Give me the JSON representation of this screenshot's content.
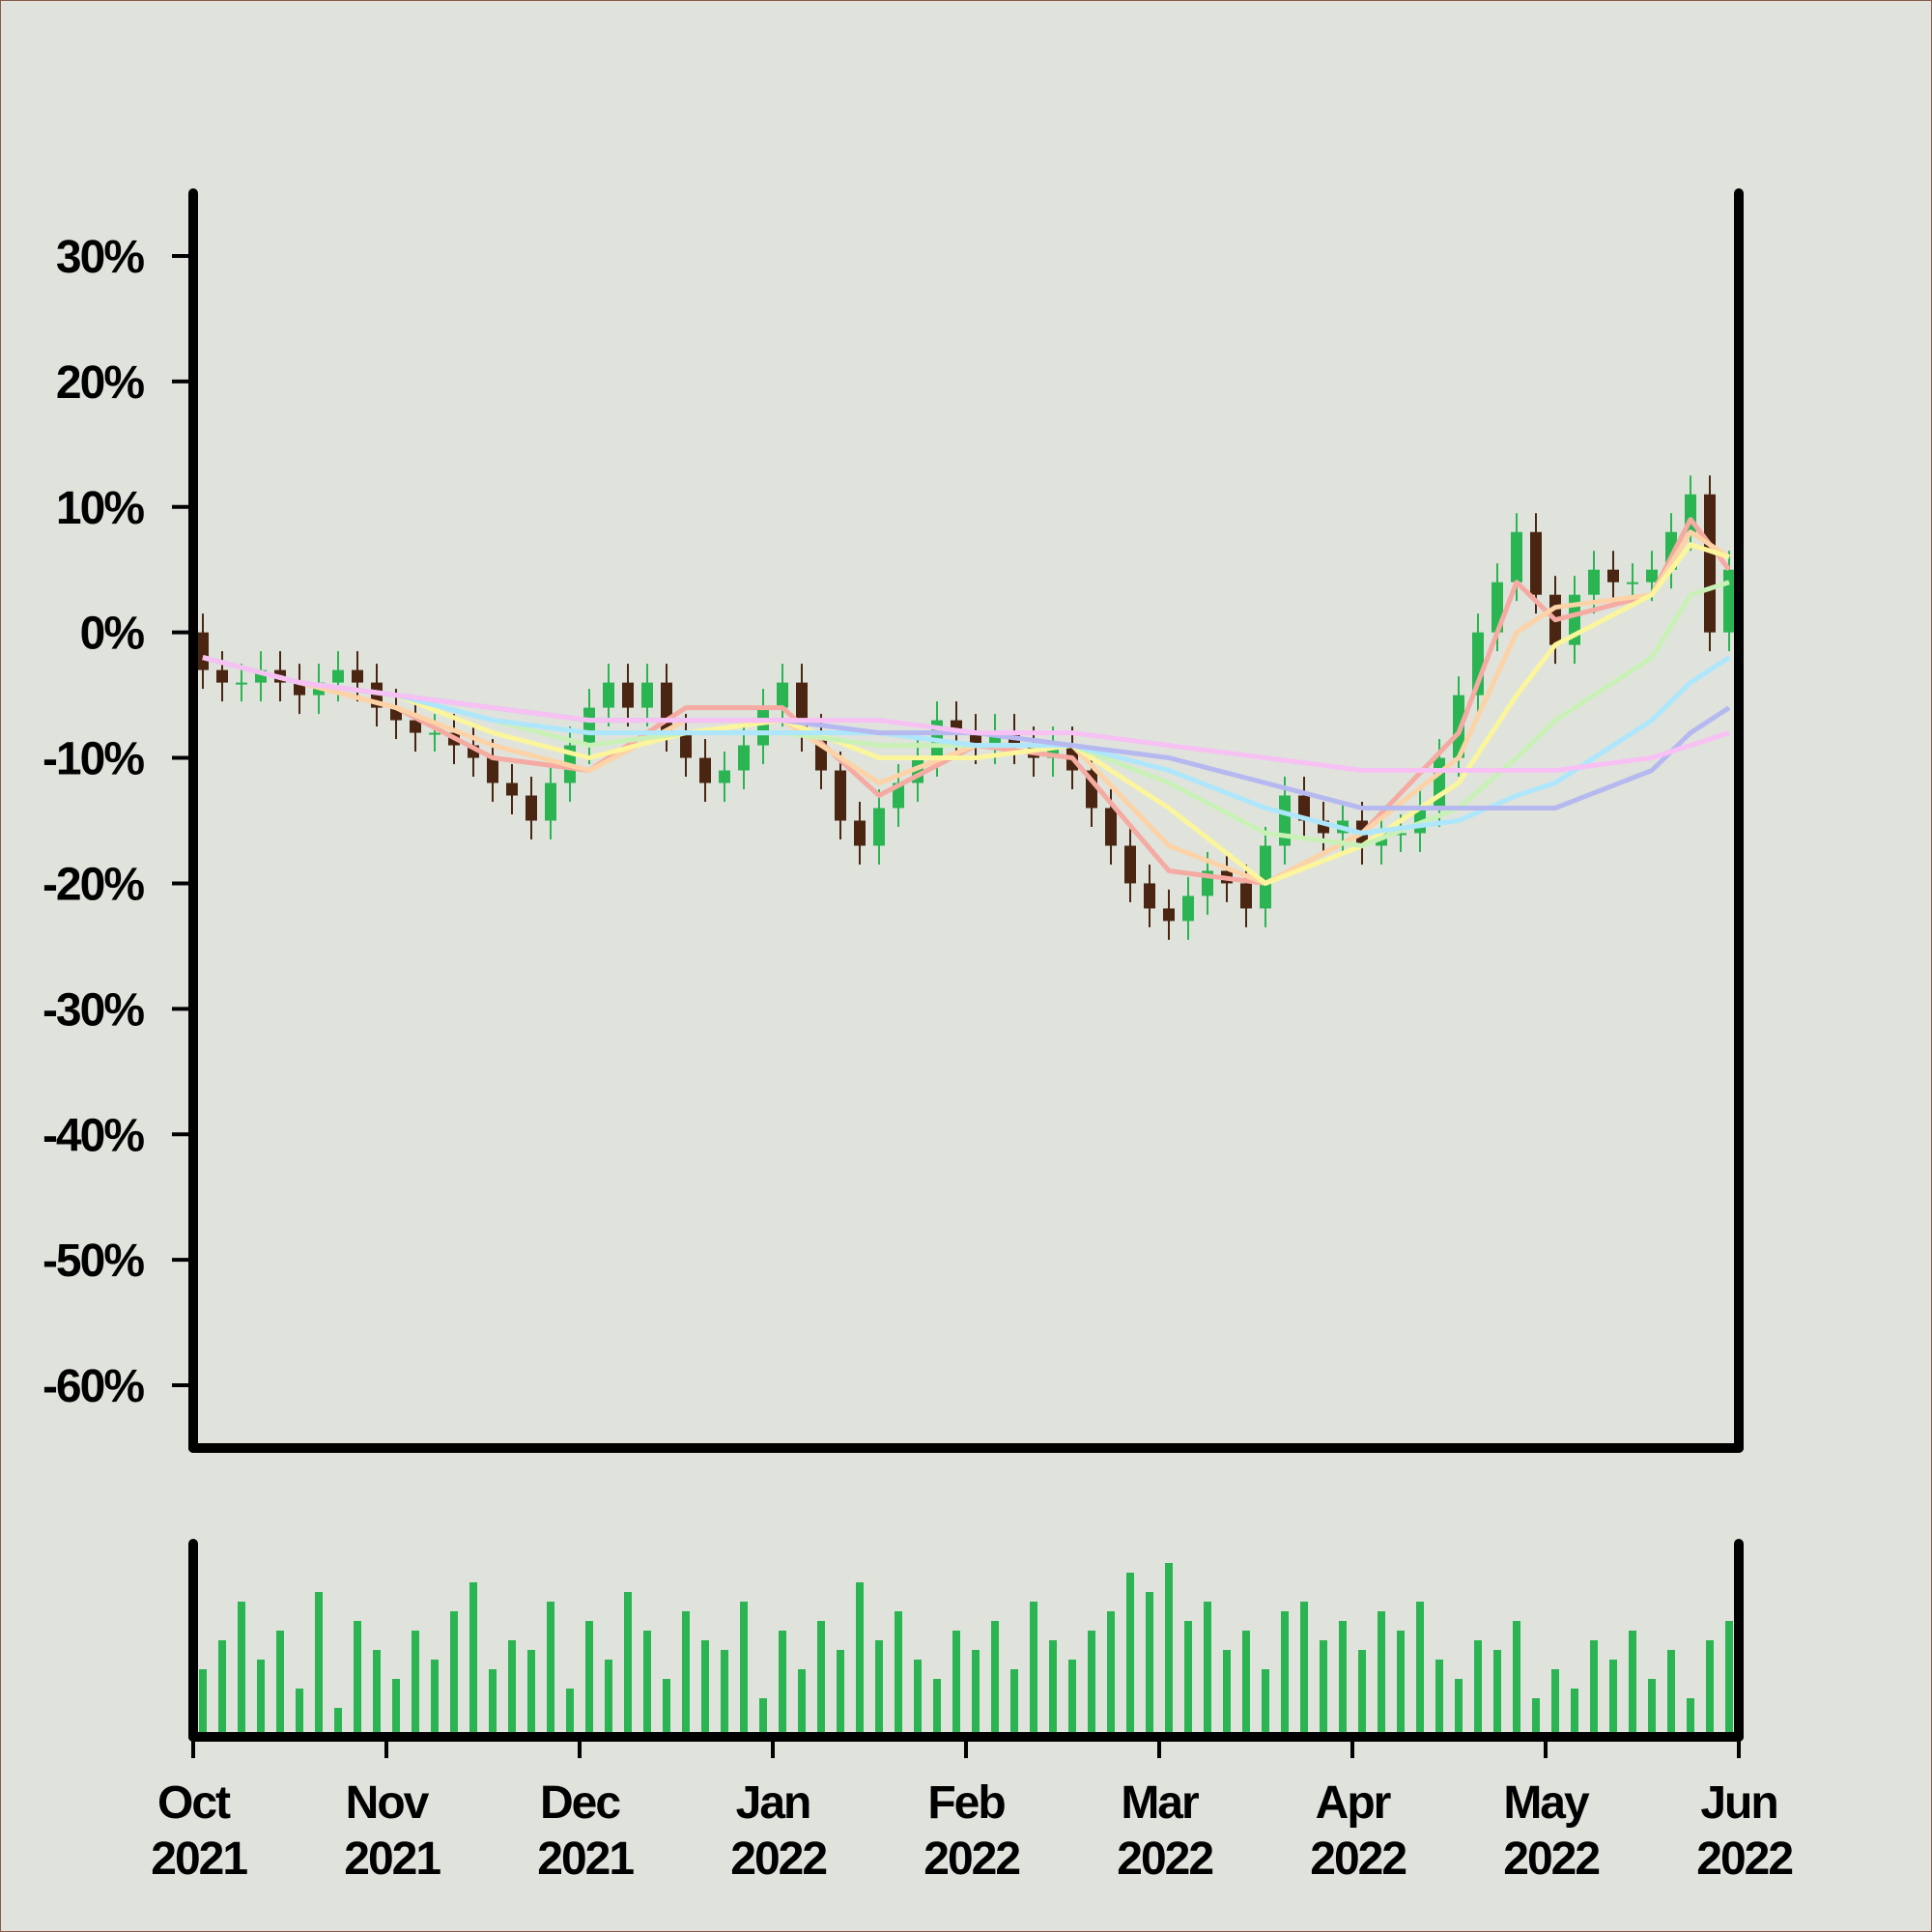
{
  "chart_data": {
    "type": "candlestick",
    "up_color": "#2ab552",
    "down_color": "#4a2612",
    "xlim": [
      0,
      80
    ],
    "ylim": [
      -65,
      35
    ],
    "yticks": [
      {
        "value": 30,
        "label": "30%"
      },
      {
        "value": 20,
        "label": "20%"
      },
      {
        "value": 10,
        "label": "10%"
      },
      {
        "value": 0,
        "label": "0%"
      },
      {
        "value": -10,
        "label": "-10%"
      },
      {
        "value": -20,
        "label": "-20%"
      },
      {
        "value": -30,
        "label": "-30%"
      },
      {
        "value": -40,
        "label": "-40%"
      },
      {
        "value": -50,
        "label": "-50%"
      },
      {
        "value": -60,
        "label": "-60%"
      }
    ],
    "xticks": [
      {
        "value": 0,
        "label": "Oct 2021"
      },
      {
        "value": 10,
        "label": "Nov 2021"
      },
      {
        "value": 20,
        "label": "Dec 2021"
      },
      {
        "value": 30,
        "label": "Jan 2022"
      },
      {
        "value": 40,
        "label": "Feb 2022"
      },
      {
        "value": 50,
        "label": "Mar 2022"
      },
      {
        "value": 60,
        "label": "Apr 2022"
      },
      {
        "value": 70,
        "label": "May 2022"
      },
      {
        "value": 80,
        "label": "Jun 2022"
      }
    ],
    "open": [
      0,
      -3,
      -4,
      -4,
      -3,
      -4,
      -5,
      -4,
      -3,
      -4,
      -6,
      -7,
      -8,
      -8,
      -9,
      -10,
      -12,
      -13,
      -15,
      -12,
      -9,
      -6,
      -4,
      -6,
      -4,
      -8,
      -10,
      -12,
      -11,
      -9,
      -6,
      -4,
      -8,
      -11,
      -15,
      -17,
      -14,
      -12,
      -10,
      -7,
      -8,
      -9,
      -8,
      -9,
      -10,
      -9,
      -11,
      -14,
      -17,
      -20,
      -22,
      -23,
      -21,
      -19,
      -20,
      -22,
      -17,
      -13,
      -15,
      -16,
      -15,
      -17,
      -16,
      -16,
      -14,
      -10,
      -5,
      0,
      4,
      8,
      3,
      -1,
      3,
      5,
      4,
      4,
      5,
      8,
      11,
      0
    ],
    "high": [
      1.5,
      -1.5,
      -2.5,
      -1.5,
      -1.5,
      -2.5,
      -2.5,
      -1.5,
      -1.5,
      -2.5,
      -4.5,
      -5.5,
      -6.5,
      -6.5,
      -7.5,
      -8.5,
      -10.5,
      -11.5,
      -10.5,
      -7.5,
      -4.5,
      -2.5,
      -2.5,
      -2.5,
      -2.5,
      -6.5,
      -8.5,
      -9.5,
      -7.5,
      -4.5,
      -2.5,
      -2.5,
      -6.5,
      -9.5,
      -13.5,
      -12.5,
      -10.5,
      -8.5,
      -5.5,
      -5.5,
      -6.5,
      -6.5,
      -6.5,
      -7.5,
      -7.5,
      -7.5,
      -9.5,
      -12.5,
      -15.5,
      -18.5,
      -20.5,
      -19.5,
      -17.5,
      -17.5,
      -18.5,
      -15.5,
      -11.5,
      -11.5,
      -13.5,
      -13.5,
      -13.5,
      -14.5,
      -14.5,
      -12.5,
      -8.5,
      -3.5,
      1.5,
      5.5,
      9.5,
      9.5,
      4.5,
      4.5,
      6.5,
      6.5,
      5.5,
      6.5,
      9.5,
      12.5,
      12.5,
      6.5
    ],
    "low": [
      -4.5,
      -5.5,
      -5.5,
      -5.5,
      -5.5,
      -6.5,
      -6.5,
      -5.5,
      -5.5,
      -7.5,
      -8.5,
      -9.5,
      -9.5,
      -10.5,
      -11.5,
      -13.5,
      -14.5,
      -16.5,
      -16.5,
      -13.5,
      -10.5,
      -7.5,
      -7.5,
      -7.5,
      -9.5,
      -11.5,
      -13.5,
      -13.5,
      -12.5,
      -10.5,
      -7.5,
      -9.5,
      -12.5,
      -16.5,
      -18.5,
      -18.5,
      -15.5,
      -13.5,
      -11.5,
      -9.5,
      -10.5,
      -10.5,
      -10.5,
      -11.5,
      -11.5,
      -12.5,
      -15.5,
      -18.5,
      -21.5,
      -23.5,
      -24.5,
      -24.5,
      -22.5,
      -21.5,
      -23.5,
      -23.5,
      -18.5,
      -16.5,
      -17.5,
      -17.5,
      -18.5,
      -18.5,
      -17.5,
      -17.5,
      -15.5,
      -11.5,
      -6.5,
      -1.5,
      2.5,
      1.5,
      -2.5,
      -2.5,
      1.5,
      2.5,
      2.5,
      2.5,
      3.5,
      6.5,
      -1.5,
      -1.5
    ],
    "close": [
      -3,
      -4,
      -4,
      -3,
      -4,
      -5,
      -4,
      -3,
      -4,
      -6,
      -7,
      -8,
      -8,
      -9,
      -10,
      -12,
      -13,
      -15,
      -12,
      -9,
      -6,
      -4,
      -6,
      -4,
      -8,
      -10,
      -12,
      -11,
      -9,
      -6,
      -4,
      -8,
      -11,
      -15,
      -17,
      -14,
      -12,
      -10,
      -7,
      -8,
      -9,
      -8,
      -9,
      -10,
      -9,
      -11,
      -14,
      -17,
      -20,
      -22,
      -23,
      -21,
      -19,
      -20,
      -22,
      -17,
      -13,
      -15,
      -16,
      -15,
      -17,
      -16,
      -16,
      -14,
      -10,
      -5,
      0,
      4,
      8,
      3,
      -1,
      3,
      5,
      4,
      4,
      5,
      8,
      11,
      0,
      5
    ],
    "ma_x": [
      0.5,
      5.5,
      10.5,
      15.5,
      20.5,
      25.5,
      30.5,
      35.5,
      40.5,
      45.5,
      50.5,
      55.5,
      60.5,
      65.5,
      68.5,
      70.5,
      75.5,
      77.5,
      79.5
    ],
    "moving_averages": [
      {
        "color": "#f5aaa2",
        "values": [
          -2,
          -4,
          -6,
          -10,
          -11,
          -6,
          -6,
          -13,
          -9,
          -10,
          -19,
          -20,
          -16,
          -8,
          4,
          1,
          3,
          9,
          5
        ]
      },
      {
        "color": "#fcd3a6",
        "values": [
          -2,
          -4,
          -6,
          -9,
          -11,
          -7,
          -7,
          -12,
          -9,
          -9,
          -17,
          -20,
          -16,
          -10,
          0,
          2,
          3,
          8,
          6
        ]
      },
      {
        "color": "#fbf59c",
        "values": [
          -2,
          -4,
          -5,
          -8,
          -10,
          -8,
          -7,
          -10,
          -10,
          -9,
          -14,
          -20,
          -17,
          -12,
          -5,
          -1,
          3,
          7,
          6
        ]
      },
      {
        "color": "#c9f1b7",
        "values": [
          -2,
          -4,
          -5,
          -7,
          -9,
          -8,
          -8,
          -9,
          -9,
          -9,
          -12,
          -16,
          -17,
          -14,
          -10,
          -7,
          -2,
          3,
          4
        ]
      },
      {
        "color": "#aee6fb",
        "values": [
          -2,
          -4,
          -5,
          -7,
          -8,
          -8,
          -8,
          -8,
          -9,
          -9,
          -11,
          -14,
          -16,
          -15,
          -13,
          -12,
          -7,
          -4,
          -2
        ]
      },
      {
        "color": "#b6b9f0",
        "values": [
          -2,
          -4,
          -5,
          -6,
          -7,
          -7,
          -7,
          -8,
          -8,
          -9,
          -10,
          -12,
          -14,
          -14,
          -14,
          -14,
          -11,
          -8,
          -6
        ]
      },
      {
        "color": "#f7c1f4",
        "values": [
          -2,
          -4,
          -5,
          -6,
          -7,
          -7,
          -7,
          -7,
          -8,
          -8,
          -9,
          -10,
          -11,
          -11,
          -11,
          -11,
          -10,
          -9,
          -8
        ]
      }
    ],
    "volume": {
      "color": "#2ab552",
      "ylim": [
        0,
        100
      ],
      "values": [
        35,
        50,
        70,
        40,
        55,
        25,
        75,
        15,
        60,
        45,
        30,
        55,
        40,
        65,
        80,
        35,
        50,
        45,
        70,
        25,
        60,
        40,
        75,
        55,
        30,
        65,
        50,
        45,
        70,
        20,
        55,
        35,
        60,
        45,
        80,
        50,
        65,
        40,
        30,
        55,
        45,
        60,
        35,
        70,
        50,
        40,
        55,
        65,
        85,
        75,
        90,
        60,
        70,
        45,
        55,
        35,
        65,
        70,
        50,
        60,
        45,
        65,
        55,
        70,
        40,
        30,
        50,
        45,
        60,
        20,
        35,
        25,
        50,
        40,
        55,
        30,
        45,
        20,
        50,
        60
      ]
    }
  }
}
